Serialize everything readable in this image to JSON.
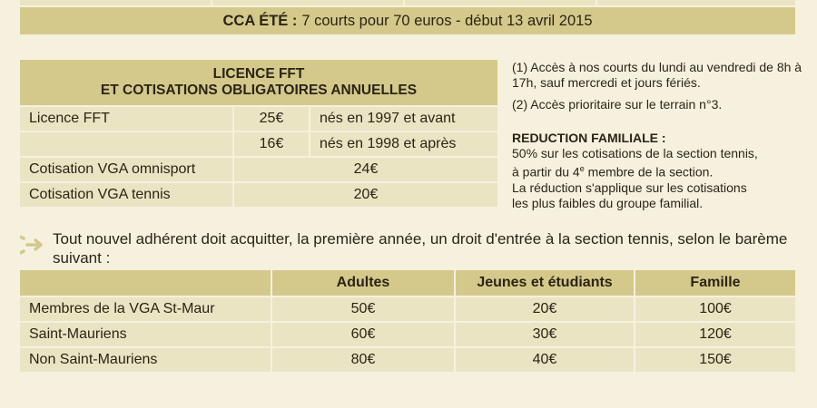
{
  "cca": {
    "label": "CCA ÉTÉ :",
    "text": "7 courts pour 70 euros - début 13 avril 2015"
  },
  "licence": {
    "title_line1": "LICENCE FFT",
    "title_line2": "ET COTISATIONS OBLIGATOIRES ANNUELLES",
    "rows": [
      {
        "label": "Licence FFT",
        "price": "25€",
        "condition": "nés en 1997 et avant"
      },
      {
        "label": "",
        "price": "16€",
        "condition": "nés en 1998 et après"
      },
      {
        "label": "Cotisation VGA omnisport",
        "amount": "24€"
      },
      {
        "label": "Cotisation VGA tennis",
        "amount": "20€"
      }
    ]
  },
  "notes": {
    "note1": "(1) Accès à nos courts du lundi au vendredi de 8h à 17h, sauf mercredi et jours fériés.",
    "note2": "(2) Accès prioritaire sur le terrain n°3.",
    "reduction_title": "REDUCTION FAMILIALE :",
    "reduction_line1": "50% sur les cotisations de la section tennis,",
    "reduction_line2_pre": "à partir du 4",
    "reduction_line2_sup": "e",
    "reduction_line2_post": " membre de la section.",
    "reduction_line3": "La réduction s'applique sur les cotisations",
    "reduction_line4": "les plus faibles du groupe familial."
  },
  "intro": {
    "icon": "arrow-right-icon",
    "text": "Tout nouvel adhérent doit acquitter, la première année, un droit d'entrée à la section tennis, selon le barème suivant :"
  },
  "fees": {
    "headers": [
      "Adultes",
      "Jeunes et étudiants",
      "Famille"
    ],
    "rows": [
      {
        "label": "Membres de la VGA St-Maur",
        "values": [
          "50€",
          "20€",
          "100€"
        ]
      },
      {
        "label": "Saint-Mauriens",
        "values": [
          "60€",
          "30€",
          "120€"
        ]
      },
      {
        "label": "Non Saint-Mauriens",
        "values": [
          "80€",
          "40€",
          "150€"
        ]
      }
    ]
  },
  "colors": {
    "header_bg": "#d4c98a",
    "cell_bg": "#ebe4c3",
    "page_bg": "#f6f1df"
  }
}
